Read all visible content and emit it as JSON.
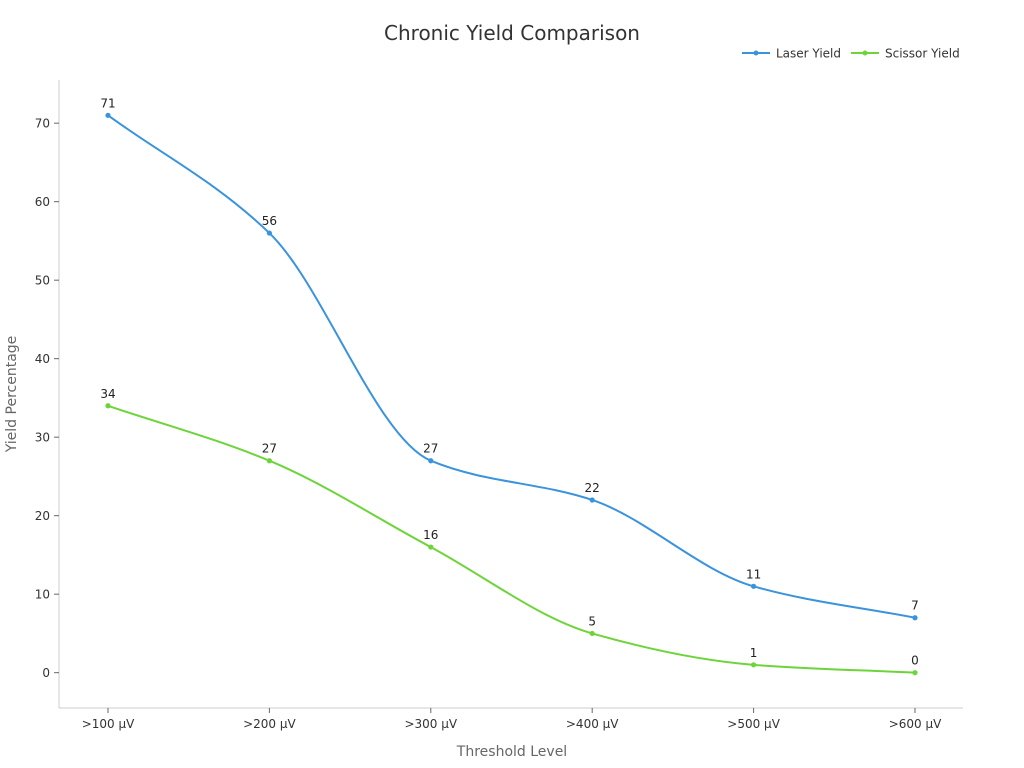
{
  "chart_data": {
    "type": "line",
    "title": "Chronic Yield Comparison",
    "xlabel": "Threshold Level",
    "ylabel": "Yield Percentage",
    "categories": [
      ">100 μV",
      ">200 μV",
      ">300 μV",
      ">400 μV",
      ">500 μV",
      ">600 μV"
    ],
    "series": [
      {
        "name": "Laser Yield",
        "color": "#3a93dd",
        "values": [
          71,
          56,
          27,
          22,
          11,
          7
        ]
      },
      {
        "name": "Scissor Yield",
        "color": "#6dd43a",
        "values": [
          34,
          27,
          16,
          5,
          1,
          0
        ]
      }
    ],
    "ylim": [
      -4.5,
      75.5
    ],
    "yticks": [
      0,
      10,
      20,
      30,
      40,
      50,
      60,
      70
    ],
    "grid": false,
    "legend": "top-right",
    "smooth": true
  }
}
